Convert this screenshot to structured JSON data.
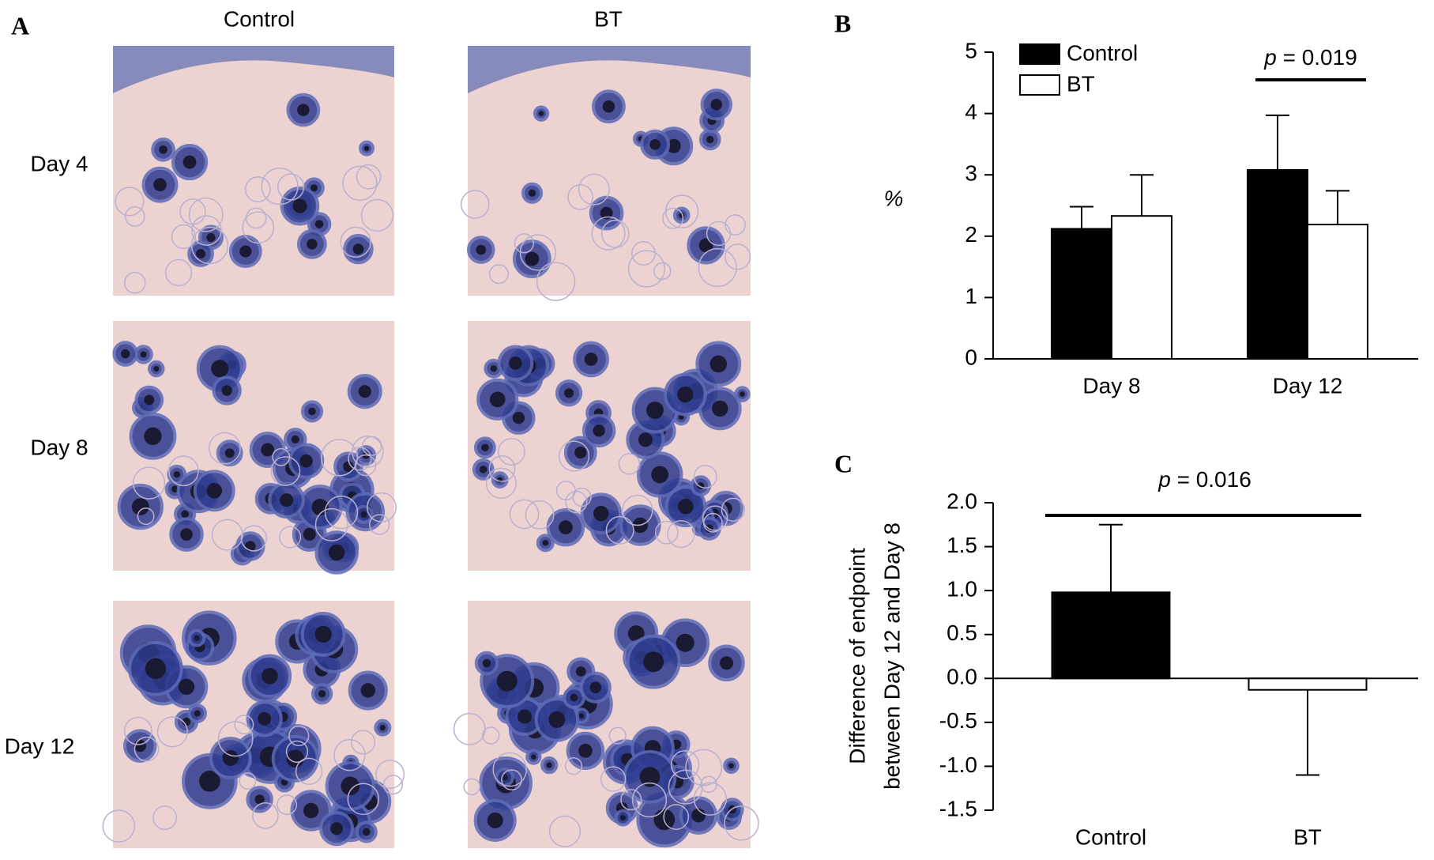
{
  "figure_a": {
    "panel_label": "A",
    "columns": [
      "Control",
      "BT"
    ],
    "rows": [
      "Day 4",
      "Day 8",
      "Day 12"
    ]
  },
  "chart_data": [
    {
      "type": "bar",
      "panel_label": "B",
      "ylabel": "%",
      "categories": [
        "Day 8",
        "Day 12"
      ],
      "series": [
        {
          "name": "Control",
          "color": "#000000",
          "values": [
            2.12,
            3.08
          ],
          "errors": [
            0.36,
            0.89
          ]
        },
        {
          "name": "BT",
          "color": "#ffffff",
          "values": [
            2.33,
            2.19
          ],
          "errors": [
            0.67,
            0.55
          ]
        }
      ],
      "ylim": [
        0,
        5
      ],
      "yticks": [
        0,
        1,
        2,
        3,
        4,
        5
      ],
      "legend": "upper-left",
      "annotation": "p = 0.019"
    },
    {
      "type": "bar",
      "panel_label": "C",
      "ylabel": [
        "Difference of endpoint",
        "between Day 12 and Day 8"
      ],
      "categories": [
        "Control",
        "BT"
      ],
      "values": [
        0.98,
        -0.13
      ],
      "errors": [
        0.77,
        0.97
      ],
      "colors": [
        "#000000",
        "#ffffff"
      ],
      "ylim": [
        -1.5,
        2.0
      ],
      "yticks": [
        {
          "value": 2.0,
          "label": "2.0"
        },
        1.5,
        {
          "value": 1.0,
          "label": "1.0"
        },
        0.5,
        {
          "value": 0.0,
          "label": "0.0"
        },
        -0.5,
        {
          "value": -1.0,
          "label": "-1.0"
        },
        -1.5
      ],
      "annotation": "p = 0.016"
    }
  ]
}
